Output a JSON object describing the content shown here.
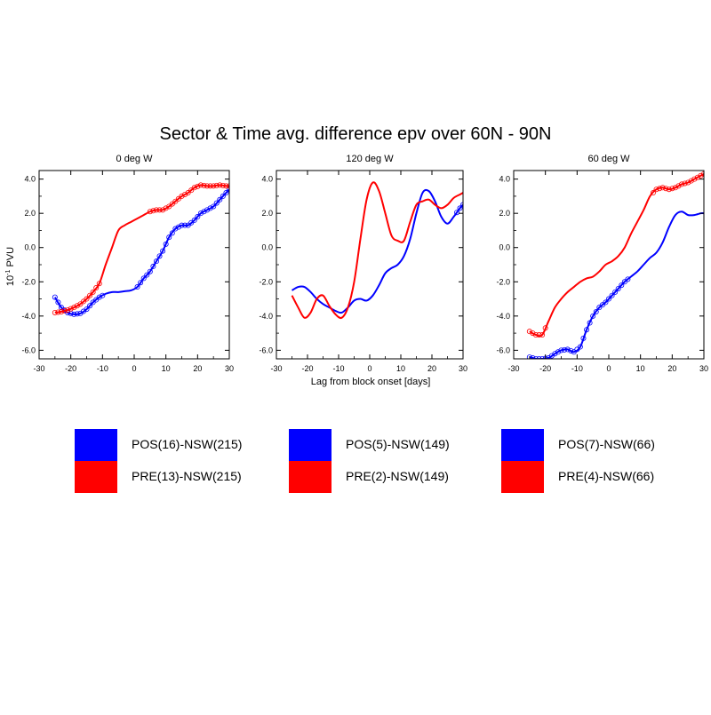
{
  "title": "Sector & Time avg. difference epv over 60N - 90N",
  "ylabel_base": "10",
  "ylabel_exp": "-1",
  "ylabel_unit": " PVU",
  "xlabel": "Lag from block onset [days]",
  "colors": {
    "pos": "#0000ff",
    "pre": "#ff0000"
  },
  "chart_data": [
    {
      "type": "line",
      "title": "0 deg W",
      "xlim": [
        -30,
        30
      ],
      "ylim": [
        -6.5,
        4.5
      ],
      "xticks": [
        "-30",
        "-20",
        "-10",
        "0",
        "10",
        "20",
        "30"
      ],
      "yticks": [
        "-6.0",
        "-4.0",
        "-2.0",
        "0.0",
        "2.0",
        "4.0"
      ],
      "xticks_values": [
        -30,
        -20,
        -10,
        0,
        10,
        20,
        30
      ],
      "yticks_values": [
        -6,
        -4,
        -2,
        0,
        2,
        4
      ],
      "series": [
        {
          "name": "POS(16)-NSW(215)",
          "color": "#0000ff",
          "x": [
            -25,
            -23,
            -21,
            -19,
            -17,
            -15,
            -13,
            -11,
            -9,
            -7,
            -5,
            -3,
            -1,
            1,
            3,
            5,
            7,
            9,
            11,
            13,
            15,
            17,
            19,
            21,
            23,
            25,
            27,
            29,
            30
          ],
          "y": [
            -2.9,
            -3.5,
            -3.8,
            -3.9,
            -3.85,
            -3.6,
            -3.2,
            -2.9,
            -2.7,
            -2.6,
            -2.6,
            -2.55,
            -2.5,
            -2.3,
            -1.8,
            -1.4,
            -0.8,
            -0.2,
            0.6,
            1.1,
            1.3,
            1.3,
            1.6,
            2.0,
            2.2,
            2.4,
            2.8,
            3.2,
            3.4
          ],
          "markers_range": [
            -25,
            -10,
            1,
            30
          ]
        },
        {
          "name": "PRE(13)-NSW(215)",
          "color": "#ff0000",
          "x": [
            -25,
            -23,
            -21,
            -19,
            -17,
            -15,
            -13,
            -11,
            -9,
            -7,
            -5,
            -3,
            -1,
            1,
            3,
            5,
            7,
            9,
            11,
            13,
            15,
            17,
            19,
            21,
            23,
            25,
            27,
            29,
            30
          ],
          "y": [
            -3.8,
            -3.75,
            -3.65,
            -3.5,
            -3.3,
            -3.0,
            -2.6,
            -2.1,
            -1.0,
            0.0,
            1.0,
            1.3,
            1.5,
            1.7,
            1.9,
            2.1,
            2.2,
            2.2,
            2.4,
            2.7,
            3.0,
            3.2,
            3.5,
            3.65,
            3.6,
            3.6,
            3.65,
            3.6,
            3.6
          ],
          "markers_range": [
            -25,
            -11,
            5,
            30
          ]
        }
      ]
    },
    {
      "type": "line",
      "title": "120 deg W",
      "xlim": [
        -30,
        30
      ],
      "ylim": [
        -6.5,
        4.5
      ],
      "xticks": [
        "-30",
        "-20",
        "-10",
        "0",
        "10",
        "20",
        "30"
      ],
      "yticks": [
        "-6.0",
        "-4.0",
        "-2.0",
        "0.0",
        "2.0",
        "4.0"
      ],
      "xticks_values": [
        -30,
        -20,
        -10,
        0,
        10,
        20,
        30
      ],
      "yticks_values": [
        -6,
        -4,
        -2,
        0,
        2,
        4
      ],
      "series": [
        {
          "name": "POS(5)-NSW(149)",
          "color": "#0000ff",
          "x": [
            -25,
            -23,
            -21,
            -19,
            -17,
            -15,
            -13,
            -11,
            -9,
            -7,
            -5,
            -3,
            -1,
            1,
            3,
            5,
            7,
            9,
            11,
            13,
            15,
            17,
            19,
            21,
            23,
            25,
            27,
            29,
            30
          ],
          "y": [
            -2.5,
            -2.3,
            -2.3,
            -2.6,
            -3.0,
            -3.3,
            -3.5,
            -3.7,
            -3.8,
            -3.5,
            -3.1,
            -3.0,
            -3.1,
            -2.8,
            -2.2,
            -1.5,
            -1.2,
            -1.0,
            -0.5,
            0.5,
            2.0,
            3.2,
            3.3,
            2.7,
            1.8,
            1.4,
            1.8,
            2.3,
            2.5
          ],
          "markers_range": [
            28,
            30
          ]
        },
        {
          "name": "PRE(2)-NSW(149)",
          "color": "#ff0000",
          "x": [
            -25,
            -23,
            -21,
            -19,
            -17,
            -15,
            -13,
            -11,
            -9,
            -7,
            -5,
            -3,
            -1,
            1,
            3,
            5,
            7,
            9,
            11,
            13,
            15,
            17,
            19,
            21,
            23,
            25,
            27,
            29,
            30
          ],
          "y": [
            -2.8,
            -3.5,
            -4.1,
            -3.8,
            -3.0,
            -2.8,
            -3.4,
            -3.9,
            -4.1,
            -3.5,
            -2.0,
            0.5,
            2.8,
            3.8,
            3.3,
            2.0,
            0.7,
            0.4,
            0.4,
            1.5,
            2.5,
            2.7,
            2.8,
            2.5,
            2.3,
            2.5,
            2.9,
            3.1,
            3.2
          ],
          "markers_range": []
        }
      ]
    },
    {
      "type": "line",
      "title": "60 deg W",
      "xlim": [
        -30,
        30
      ],
      "ylim": [
        -6.5,
        4.5
      ],
      "xticks": [
        "-30",
        "-20",
        "-10",
        "0",
        "10",
        "20",
        "30"
      ],
      "yticks": [
        "-6.0",
        "-4.0",
        "-2.0",
        "0.0",
        "2.0",
        "4.0"
      ],
      "xticks_values": [
        -30,
        -20,
        -10,
        0,
        10,
        20,
        30
      ],
      "yticks_values": [
        -6,
        -4,
        -2,
        0,
        2,
        4
      ],
      "series": [
        {
          "name": "POS(7)-NSW(66)",
          "color": "#0000ff",
          "x": [
            -25,
            -23,
            -21,
            -19,
            -17,
            -15,
            -13,
            -11,
            -9,
            -7,
            -5,
            -3,
            -1,
            1,
            3,
            5,
            7,
            9,
            11,
            13,
            15,
            17,
            19,
            21,
            23,
            25,
            27,
            29,
            30
          ],
          "y": [
            -6.4,
            -6.5,
            -6.5,
            -6.45,
            -6.2,
            -6.0,
            -5.95,
            -6.1,
            -5.8,
            -4.8,
            -4.0,
            -3.5,
            -3.2,
            -2.8,
            -2.4,
            -2.0,
            -1.7,
            -1.4,
            -1.0,
            -0.6,
            -0.3,
            0.3,
            1.2,
            1.9,
            2.1,
            1.9,
            1.9,
            2.0,
            2.0
          ],
          "markers_range": [
            -25,
            6
          ]
        },
        {
          "name": "PRE(4)-NSW(66)",
          "color": "#ff0000",
          "x": [
            -25,
            -23,
            -21,
            -19,
            -17,
            -15,
            -13,
            -11,
            -9,
            -7,
            -5,
            -3,
            -1,
            1,
            3,
            5,
            7,
            9,
            11,
            13,
            15,
            17,
            19,
            21,
            23,
            25,
            27,
            29,
            30
          ],
          "y": [
            -4.9,
            -5.1,
            -5.1,
            -4.3,
            -3.5,
            -3.0,
            -2.6,
            -2.3,
            -2.0,
            -1.8,
            -1.7,
            -1.4,
            -1.0,
            -0.8,
            -0.5,
            0.0,
            0.8,
            1.5,
            2.2,
            3.0,
            3.4,
            3.5,
            3.4,
            3.5,
            3.7,
            3.8,
            4.0,
            4.2,
            4.3
          ],
          "markers_range": [
            -25,
            -20,
            14,
            30
          ]
        }
      ]
    }
  ],
  "legend": [
    {
      "pos": "POS(16)-NSW(215)",
      "pre": "PRE(13)-NSW(215)"
    },
    {
      "pos": "POS(5)-NSW(149)",
      "pre": "PRE(2)-NSW(149)"
    },
    {
      "pos": "POS(7)-NSW(66)",
      "pre": "PRE(4)-NSW(66)"
    }
  ]
}
